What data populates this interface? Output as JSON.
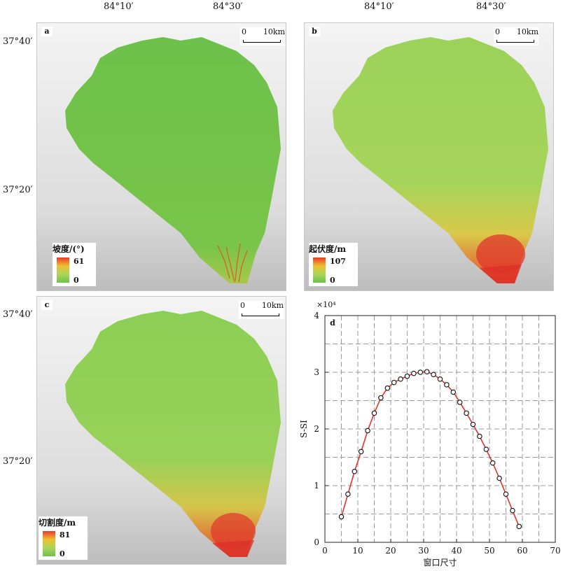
{
  "coordinates": {
    "lon_1": "84°10′",
    "lon_2": "84°30′",
    "lat_1": "37°40′",
    "lat_2": "37°20′"
  },
  "panels": {
    "a": {
      "label": "a",
      "legend_title": "坡度/(°)",
      "max": "61",
      "min": "0"
    },
    "b": {
      "label": "b",
      "legend_title": "起伏度/m",
      "max": "107",
      "min": "0"
    },
    "c": {
      "label": "c",
      "legend_title": "切割度/m",
      "max": "81",
      "min": "0"
    }
  },
  "scalebar": {
    "start": "0",
    "end": "10km"
  },
  "colors": {
    "map_low": "#6ec24a",
    "map_mid": "#f0c030",
    "map_high": "#e83a2b",
    "curve": "#e8302a"
  },
  "chart_data": {
    "type": "line",
    "panel_label": "d",
    "xlabel": "窗口尺寸",
    "ylabel": "S-SI",
    "y_multiplier": "×10⁴",
    "xlim": [
      0,
      70
    ],
    "ylim": [
      0,
      4
    ],
    "xticks": [
      0,
      10,
      20,
      30,
      40,
      50,
      60,
      70
    ],
    "yticks": [
      0,
      1,
      2,
      3,
      4
    ],
    "grid": true,
    "x": [
      5,
      7,
      9,
      11,
      13,
      15,
      17,
      19,
      21,
      23,
      25,
      27,
      29,
      31,
      33,
      35,
      37,
      39,
      41,
      43,
      45,
      47,
      49,
      51,
      53,
      55,
      57,
      59
    ],
    "y": [
      0.45,
      0.85,
      1.25,
      1.6,
      1.97,
      2.28,
      2.55,
      2.72,
      2.82,
      2.88,
      2.93,
      2.98,
      3.0,
      3.01,
      2.96,
      2.88,
      2.78,
      2.65,
      2.47,
      2.28,
      2.08,
      1.87,
      1.64,
      1.4,
      1.13,
      0.85,
      0.56,
      0.28
    ]
  }
}
